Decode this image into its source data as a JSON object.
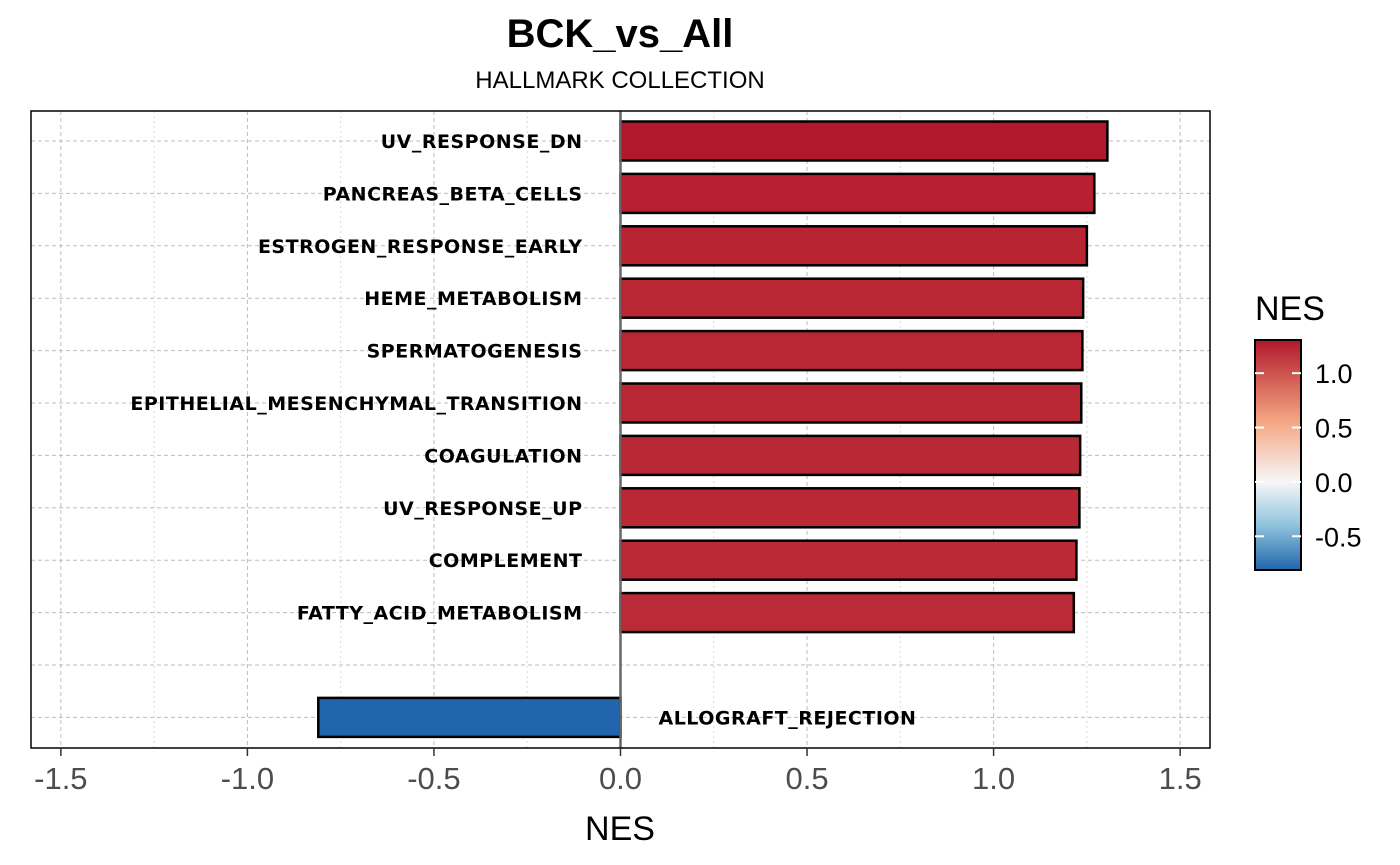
{
  "chart_data": {
    "type": "bar",
    "orientation": "horizontal",
    "title": "BCK_vs_All",
    "subtitle": "HALLMARK COLLECTION",
    "xlabel": "NES",
    "ylabel": "",
    "xlim": [
      -1.58,
      1.58
    ],
    "xticks": [
      -1.5,
      -1.0,
      -0.5,
      0.0,
      0.5,
      1.0,
      1.5
    ],
    "xtick_labels": [
      "-1.5",
      "-1.0",
      "-0.5",
      "0.0",
      "0.5",
      "1.0",
      "1.5"
    ],
    "grid": true,
    "categories": [
      "UV_RESPONSE_DN",
      "PANCREAS_BETA_CELLS",
      "ESTROGEN_RESPONSE_EARLY",
      "HEME_METABOLISM",
      "SPERMATOGENESIS",
      "EPITHELIAL_MESENCHYMAL_TRANSITION",
      "COAGULATION",
      "UV_RESPONSE_UP",
      "COMPLEMENT",
      "FATTY_ACID_METABOLISM",
      "",
      "ALLOGRAFT_REJECTION"
    ],
    "values": [
      1.305,
      1.27,
      1.25,
      1.24,
      1.238,
      1.235,
      1.232,
      1.23,
      1.222,
      1.215,
      null,
      -0.81
    ],
    "legend": {
      "title": "NES",
      "placement": "right",
      "ticks": [
        1.0,
        0.5,
        0.0,
        -0.5
      ],
      "tick_labels": [
        "1.0",
        "0.5",
        "0.0",
        "-0.5"
      ],
      "range": [
        -0.81,
        1.305
      ]
    },
    "colors": {
      "high": "#b2182b",
      "mid_high": "#f4a582",
      "mid": "#f7f7f7",
      "mid_low": "#92c5de",
      "low": "#2166ac",
      "bar_stroke": "#000000",
      "zero_line": "#666666"
    }
  }
}
